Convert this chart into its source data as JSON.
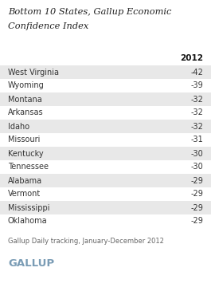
{
  "title_line1": "Bottom 10 States, Gallup Economic",
  "title_line2": "Confidence Index",
  "column_header": "2012",
  "states": [
    "West Virginia",
    "Wyoming",
    "Montana",
    "Arkansas",
    "Idaho",
    "Missouri",
    "Kentucky",
    "Tennessee",
    "Alabama",
    "Vermont",
    "Mississippi",
    "Oklahoma"
  ],
  "values": [
    "-42",
    "-39",
    "-32",
    "-32",
    "-32",
    "-31",
    "-30",
    "-30",
    "-29",
    "-29",
    "-29",
    "-29"
  ],
  "footer": "Gallup Daily tracking, January-December 2012",
  "brand": "GALLUP",
  "bg_color": "#ffffff",
  "row_shaded_color": "#e8e8e8",
  "row_plain_color": "#ffffff",
  "title_color": "#222222",
  "text_color": "#333333",
  "footer_color": "#666666",
  "brand_color": "#7a9cb5",
  "header_color": "#111111"
}
